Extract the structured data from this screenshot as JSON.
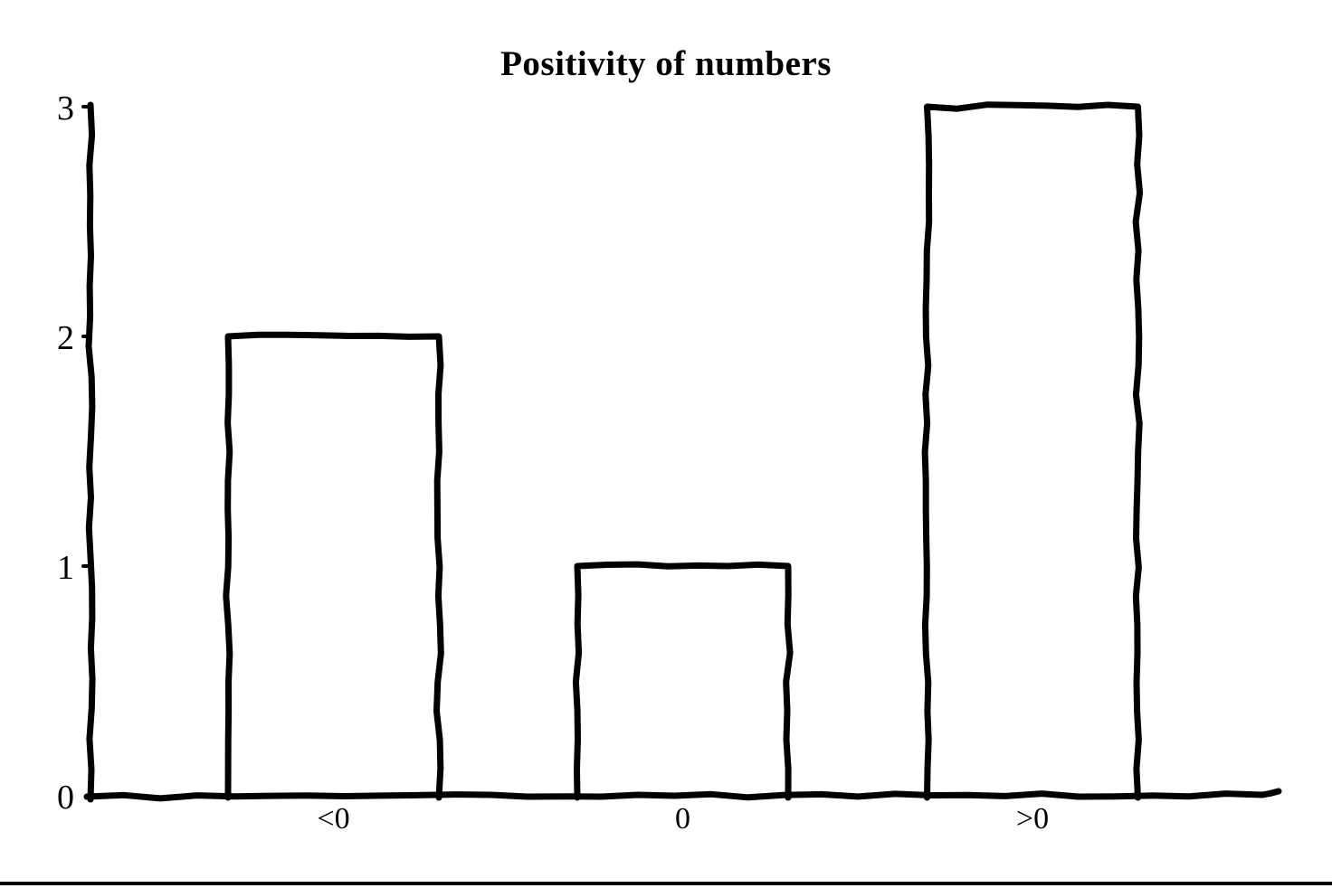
{
  "page": {
    "background_color": "#ffffff",
    "ink_color": "#000000"
  },
  "chart_data": {
    "type": "bar",
    "title": "Positivity of numbers",
    "categories": [
      "<0",
      "0",
      ">0"
    ],
    "values": [
      2,
      1,
      3
    ],
    "xlabel": "",
    "ylabel": "",
    "ylim": [
      0,
      3
    ],
    "yticks": [
      0,
      1,
      2,
      3
    ],
    "grid": false,
    "legend": "none",
    "bar_fill": "#ffffff",
    "bar_outline": "#000000",
    "style": "hand-drawn-sketch"
  }
}
